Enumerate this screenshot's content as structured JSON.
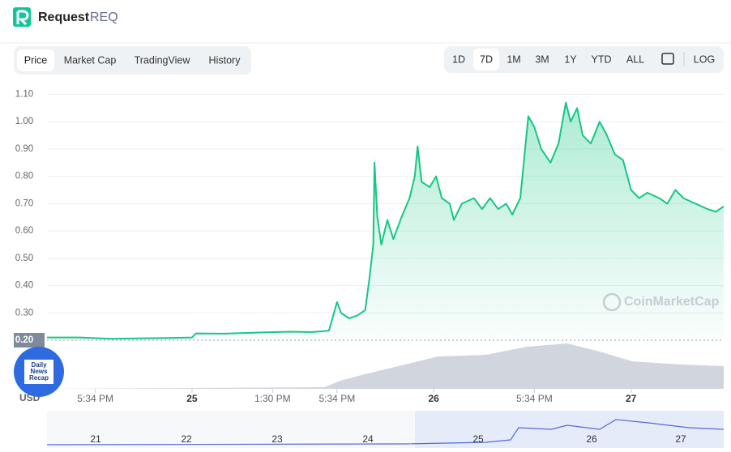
{
  "header": {
    "name": "Request",
    "symbol": "REQ"
  },
  "tabs": [
    "Price",
    "Market Cap",
    "TradingView",
    "History"
  ],
  "ranges": [
    "1D",
    "7D",
    "1M",
    "3M",
    "1Y",
    "YTD",
    "ALL",
    "LOG"
  ],
  "badge": [
    "Daily",
    "News",
    "Recap"
  ],
  "navigator": {
    "labels": [
      "21",
      "22",
      "23",
      "24",
      "25",
      "26",
      "27"
    ]
  },
  "chart_data": {
    "type": "line",
    "watermark": "CoinMarketCap",
    "y_unit": "USD",
    "color": "#16c784",
    "grid": true,
    "x": [
      0,
      8,
      16,
      24,
      30,
      36,
      37,
      44,
      52,
      60,
      66,
      70,
      72,
      73,
      75,
      77,
      79,
      80,
      81,
      81.3,
      82,
      83,
      84.5,
      86,
      88,
      90,
      91.3,
      92,
      93,
      95,
      96.6,
      98,
      100,
      101,
      103,
      106,
      108,
      110,
      112,
      114,
      115.5,
      117.5,
      119.5,
      121,
      122.7,
      125,
      127,
      128.8,
      130,
      131.6,
      133,
      135,
      137.2,
      139,
      141,
      143,
      145,
      147,
      149,
      152,
      154,
      156,
      158,
      161,
      164,
      166,
      168
    ],
    "values": [
      0.21,
      0.21,
      0.205,
      0.207,
      0.208,
      0.21,
      0.225,
      0.224,
      0.228,
      0.231,
      0.23,
      0.235,
      0.34,
      0.3,
      0.28,
      0.29,
      0.31,
      0.42,
      0.55,
      0.85,
      0.65,
      0.55,
      0.64,
      0.57,
      0.65,
      0.72,
      0.8,
      0.91,
      0.78,
      0.76,
      0.8,
      0.72,
      0.7,
      0.64,
      0.7,
      0.72,
      0.68,
      0.72,
      0.68,
      0.7,
      0.66,
      0.72,
      1.02,
      0.98,
      0.9,
      0.85,
      0.92,
      1.07,
      1.0,
      1.05,
      0.95,
      0.92,
      1.0,
      0.95,
      0.88,
      0.86,
      0.75,
      0.72,
      0.74,
      0.72,
      0.7,
      0.75,
      0.72,
      0.7,
      0.68,
      0.67,
      0.69
    ],
    "xlim": [
      0,
      168
    ],
    "xticks": [
      {
        "value": 12,
        "label": "5:34 PM"
      },
      {
        "value": 36,
        "label": "25"
      },
      {
        "value": 56,
        "label": "1:30 PM"
      },
      {
        "value": 72,
        "label": "5:34 PM"
      },
      {
        "value": 96,
        "label": "26"
      },
      {
        "value": 121,
        "label": "5:34 PM"
      },
      {
        "value": 145,
        "label": "27"
      }
    ],
    "ylim": [
      0.2,
      1.14
    ],
    "yticks": [
      {
        "value": 0.2,
        "label": "0.20"
      },
      {
        "value": 0.3,
        "label": "0.30"
      },
      {
        "value": 0.4,
        "label": "0.40"
      },
      {
        "value": 0.5,
        "label": "0.50"
      },
      {
        "value": 0.6,
        "label": "0.60"
      },
      {
        "value": 0.7,
        "label": "0.70"
      },
      {
        "value": 0.8,
        "label": "0.80"
      },
      {
        "value": 0.9,
        "label": "0.90"
      },
      {
        "value": 1.0,
        "label": "1.00"
      },
      {
        "value": 1.1,
        "label": "1.10"
      }
    ]
  }
}
